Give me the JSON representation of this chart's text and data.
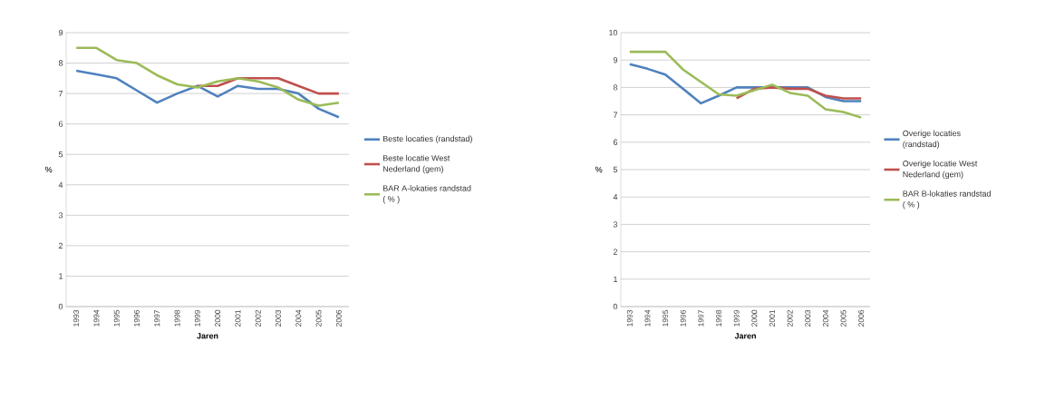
{
  "chart_data": [
    {
      "type": "line",
      "ylabel": "%",
      "xlabel": "Jaren",
      "categories": [
        "1993",
        "1994",
        "1995",
        "1996",
        "1997",
        "1998",
        "1999",
        "2000",
        "2001",
        "2002",
        "2003",
        "2004",
        "2005",
        "2006"
      ],
      "ylim": [
        0,
        9
      ],
      "yticks": [
        0,
        1,
        2,
        3,
        4,
        5,
        6,
        7,
        8,
        9
      ],
      "grid": "y",
      "legend": "right",
      "marker": "none",
      "line_style": "solid",
      "series": [
        {
          "name": "Beste locaties (randstad)",
          "color": "#4f81bd",
          "values": [
            7.75,
            7.63,
            7.5,
            7.1,
            6.7,
            7.0,
            7.25,
            6.9,
            7.25,
            7.15,
            7.15,
            7.0,
            6.5,
            6.22
          ]
        },
        {
          "name": "Beste locatie West Nederland (gem)",
          "color": "#c0504d",
          "values": [
            null,
            null,
            null,
            null,
            null,
            null,
            7.25,
            7.25,
            7.5,
            7.5,
            7.5,
            7.25,
            7.0,
            7.0
          ]
        },
        {
          "name": "BAR A-lokaties randstad ( % )",
          "color": "#9bbb59",
          "values": [
            8.5,
            8.5,
            8.1,
            8.0,
            7.6,
            7.3,
            7.2,
            7.4,
            7.5,
            7.4,
            7.2,
            6.8,
            6.6,
            6.7
          ]
        }
      ]
    },
    {
      "type": "line",
      "ylabel": "%",
      "xlabel": "Jaren",
      "categories": [
        "1993",
        "1994",
        "1995",
        "1996",
        "1997",
        "1998",
        "1999",
        "2000",
        "2001",
        "2002",
        "2003",
        "2004",
        "2005",
        "2006"
      ],
      "ylim": [
        0,
        10
      ],
      "yticks": [
        0,
        1,
        2,
        3,
        4,
        5,
        6,
        7,
        8,
        9,
        10
      ],
      "grid": "y",
      "legend": "right",
      "marker": "none",
      "line_style": "solid",
      "series": [
        {
          "name": "Overige locaties (randstad)",
          "color": "#4f81bd",
          "values": [
            8.85,
            8.68,
            8.47,
            7.95,
            7.42,
            7.7,
            8.0,
            8.0,
            8.0,
            8.0,
            8.0,
            7.65,
            7.5,
            7.5
          ]
        },
        {
          "name": "Overige locatie West Nederland (gem)",
          "color": "#c0504d",
          "values": [
            null,
            null,
            null,
            null,
            null,
            null,
            7.6,
            7.95,
            8.0,
            7.95,
            7.95,
            7.7,
            7.6,
            7.6
          ]
        },
        {
          "name": "BAR B-lokaties randstad ( % )",
          "color": "#9bbb59",
          "values": [
            9.3,
            9.3,
            9.3,
            8.65,
            8.2,
            7.75,
            7.7,
            7.9,
            8.1,
            7.8,
            7.7,
            7.2,
            7.1,
            6.9
          ]
        }
      ]
    }
  ]
}
